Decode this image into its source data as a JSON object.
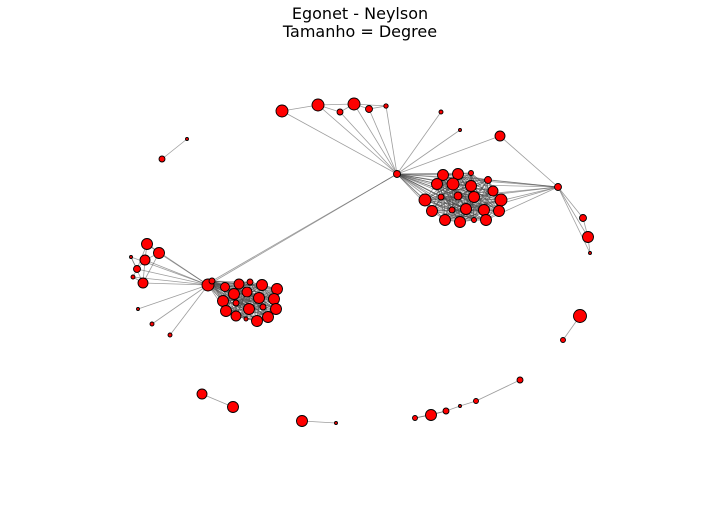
{
  "figure": {
    "title_line1": "Egonet - Neylson",
    "title_line2": "Tamanho = Degree"
  },
  "style": {
    "node_fill": "#ff0000",
    "node_stroke": "#000000",
    "edge_color": "#4d4d4d",
    "background": "#ffffff"
  },
  "chart_data": {
    "type": "network",
    "node_size_encodes": "degree"
  }
}
